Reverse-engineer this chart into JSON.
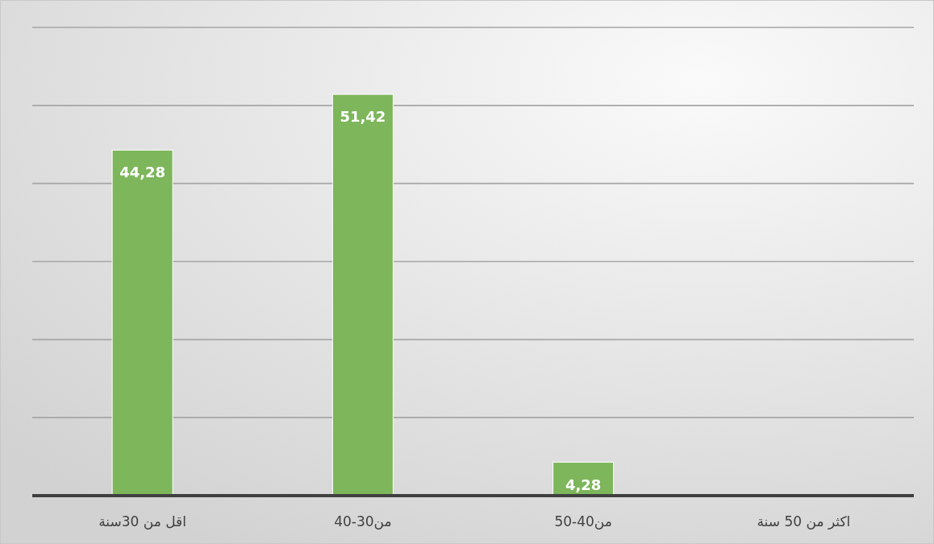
{
  "chart_data": {
    "type": "bar",
    "categories": [
      "اقل من 30سنة",
      "من30-40",
      "من40-50",
      "اكثر من 50 سنة"
    ],
    "values": [
      44.28,
      51.42,
      4.28,
      null
    ],
    "value_labels": [
      "44,28",
      "51,42",
      "4,28",
      null
    ],
    "color": "#7db65b",
    "ylim": [
      0,
      60
    ],
    "yticks": [
      {
        "value": 0,
        "label": null
      },
      {
        "value": 10,
        "label": null
      },
      {
        "value": 20,
        "label": null
      },
      {
        "value": 30,
        "label": null
      },
      {
        "value": 40,
        "label": null
      },
      {
        "value": 50,
        "label": null
      },
      {
        "value": 60,
        "label": null
      }
    ],
    "tick_labels": "x",
    "grid": "y"
  }
}
